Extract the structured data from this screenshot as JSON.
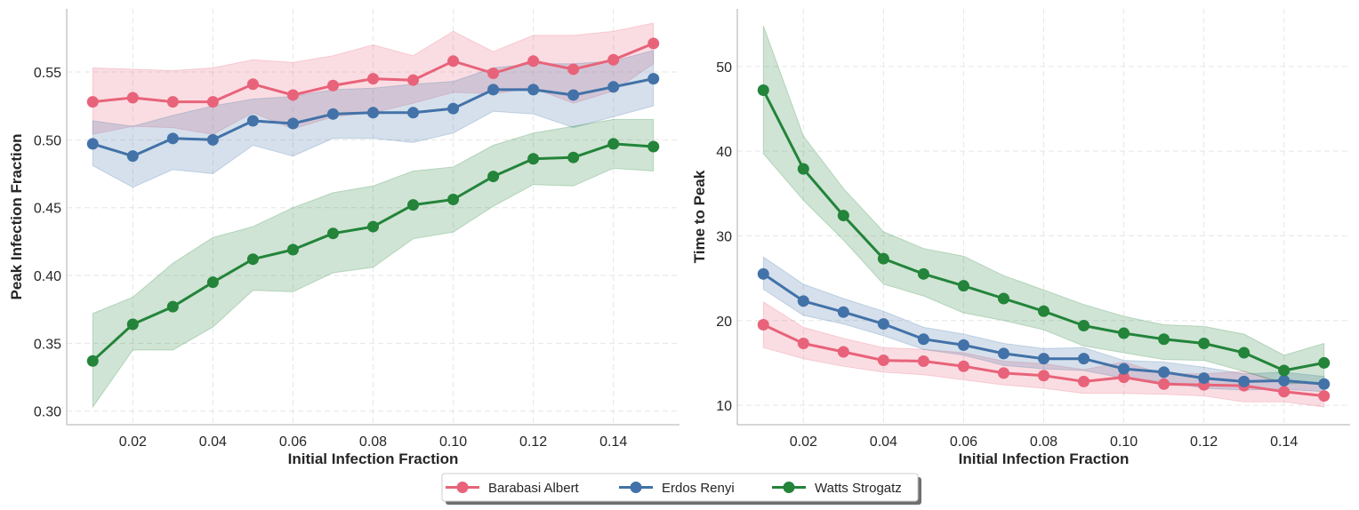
{
  "chart_data": [
    {
      "type": "line",
      "xlabel": "Initial Infection Fraction",
      "ylabel": "Peak Infection Fraction",
      "x": [
        0.01,
        0.02,
        0.03,
        0.04,
        0.05,
        0.06,
        0.07,
        0.08,
        0.09,
        0.1,
        0.11,
        0.12,
        0.13,
        0.14,
        0.15
      ],
      "xticks": [
        "0.02",
        "0.04",
        "0.06",
        "0.08",
        "0.10",
        "0.12",
        "0.14"
      ],
      "xtick_values": [
        0.02,
        0.04,
        0.06,
        0.08,
        0.1,
        0.12,
        0.14
      ],
      "yticks": [
        "0.30",
        "0.35",
        "0.40",
        "0.45",
        "0.50",
        "0.55"
      ],
      "ytick_values": [
        0.3,
        0.35,
        0.4,
        0.45,
        0.5,
        0.55
      ],
      "xlim": [
        0.0035,
        0.1565
      ],
      "ylim": [
        0.29,
        0.5965
      ],
      "grid": true,
      "series": [
        {
          "name": "Barabasi Albert",
          "color": "#e8637a",
          "values": [
            0.528,
            0.531,
            0.528,
            0.528,
            0.541,
            0.533,
            0.54,
            0.545,
            0.544,
            0.558,
            0.549,
            0.558,
            0.552,
            0.559,
            0.571
          ],
          "lower": [
            0.504,
            0.51,
            0.509,
            0.504,
            0.52,
            0.508,
            0.517,
            0.52,
            0.527,
            0.535,
            0.534,
            0.538,
            0.527,
            0.536,
            0.556
          ],
          "upper": [
            0.553,
            0.552,
            0.551,
            0.553,
            0.559,
            0.557,
            0.562,
            0.57,
            0.562,
            0.58,
            0.565,
            0.577,
            0.577,
            0.58,
            0.586
          ]
        },
        {
          "name": "Erdos Renyi",
          "color": "#4272a8",
          "values": [
            0.497,
            0.488,
            0.501,
            0.5,
            0.514,
            0.512,
            0.519,
            0.52,
            0.52,
            0.523,
            0.537,
            0.537,
            0.533,
            0.539,
            0.545
          ],
          "lower": [
            0.481,
            0.465,
            0.478,
            0.475,
            0.496,
            0.488,
            0.501,
            0.501,
            0.498,
            0.505,
            0.521,
            0.519,
            0.509,
            0.517,
            0.525
          ],
          "upper": [
            0.514,
            0.51,
            0.518,
            0.525,
            0.53,
            0.532,
            0.537,
            0.538,
            0.541,
            0.543,
            0.553,
            0.556,
            0.556,
            0.558,
            0.566
          ]
        },
        {
          "name": "Watts Strogatz",
          "color": "#23843a",
          "values": [
            0.337,
            0.364,
            0.377,
            0.395,
            0.412,
            0.419,
            0.431,
            0.436,
            0.452,
            0.456,
            0.473,
            0.486,
            0.487,
            0.497,
            0.495
          ],
          "lower": [
            0.303,
            0.345,
            0.345,
            0.362,
            0.389,
            0.388,
            0.402,
            0.406,
            0.427,
            0.432,
            0.451,
            0.467,
            0.466,
            0.479,
            0.477
          ],
          "upper": [
            0.372,
            0.384,
            0.409,
            0.428,
            0.436,
            0.45,
            0.461,
            0.466,
            0.477,
            0.48,
            0.496,
            0.505,
            0.51,
            0.515,
            0.515
          ]
        }
      ]
    },
    {
      "type": "line",
      "xlabel": "Initial Infection Fraction",
      "ylabel": "Time to Peak",
      "x": [
        0.01,
        0.02,
        0.03,
        0.04,
        0.05,
        0.06,
        0.07,
        0.08,
        0.09,
        0.1,
        0.11,
        0.12,
        0.13,
        0.14,
        0.15
      ],
      "xticks": [
        "0.02",
        "0.04",
        "0.06",
        "0.08",
        "0.10",
        "0.12",
        "0.14"
      ],
      "xtick_values": [
        0.02,
        0.04,
        0.06,
        0.08,
        0.1,
        0.12,
        0.14
      ],
      "yticks": [
        "10",
        "20",
        "30",
        "40",
        "50"
      ],
      "ytick_values": [
        10,
        20,
        30,
        40,
        50
      ],
      "xlim": [
        0.0035,
        0.1565
      ],
      "ylim": [
        7.7,
        56.8
      ],
      "grid": true,
      "series": [
        {
          "name": "Barabasi Albert",
          "color": "#e8637a",
          "values": [
            19.5,
            17.3,
            16.3,
            15.3,
            15.2,
            14.6,
            13.8,
            13.5,
            12.8,
            13.3,
            12.5,
            12.4,
            12.3,
            11.6,
            11.1
          ],
          "lower": [
            16.8,
            15.5,
            14.6,
            13.9,
            13.6,
            13.0,
            12.4,
            12.0,
            11.4,
            11.4,
            11.3,
            11.1,
            10.4,
            10.4,
            9.8
          ],
          "upper": [
            22.2,
            19.2,
            17.9,
            16.8,
            16.6,
            16.2,
            15.2,
            14.9,
            14.2,
            15.1,
            13.7,
            13.7,
            14.0,
            12.7,
            12.4
          ]
        },
        {
          "name": "Erdos Renyi",
          "color": "#4272a8",
          "values": [
            25.5,
            22.3,
            21.0,
            19.6,
            17.8,
            17.1,
            16.1,
            15.5,
            15.5,
            14.3,
            13.9,
            13.2,
            12.8,
            12.9,
            12.5
          ],
          "lower": [
            23.7,
            20.6,
            19.6,
            18.2,
            16.6,
            15.9,
            14.7,
            14.3,
            14.1,
            13.2,
            12.8,
            12.0,
            11.8,
            11.9,
            11.6
          ],
          "upper": [
            27.5,
            24.3,
            22.6,
            21.1,
            19.2,
            18.4,
            17.3,
            16.7,
            16.8,
            15.3,
            15.1,
            14.5,
            13.7,
            13.9,
            13.4
          ]
        },
        {
          "name": "Watts Strogatz",
          "color": "#23843a",
          "values": [
            47.2,
            37.9,
            32.4,
            27.3,
            25.5,
            24.1,
            22.6,
            21.1,
            19.4,
            18.5,
            17.8,
            17.3,
            16.2,
            14.1,
            15.0
          ],
          "lower": [
            39.7,
            34.2,
            29.5,
            24.3,
            22.9,
            20.9,
            20.0,
            18.9,
            17.0,
            16.2,
            15.4,
            15.3,
            14.0,
            12.5,
            12.7
          ],
          "upper": [
            54.8,
            41.8,
            35.6,
            30.5,
            28.5,
            27.6,
            25.3,
            23.6,
            21.9,
            20.5,
            19.5,
            19.3,
            18.4,
            15.9,
            17.3
          ]
        }
      ]
    }
  ],
  "legend": {
    "placement": "bottom-center",
    "items": [
      "Barabasi Albert",
      "Erdos Renyi",
      "Watts Strogatz"
    ]
  }
}
